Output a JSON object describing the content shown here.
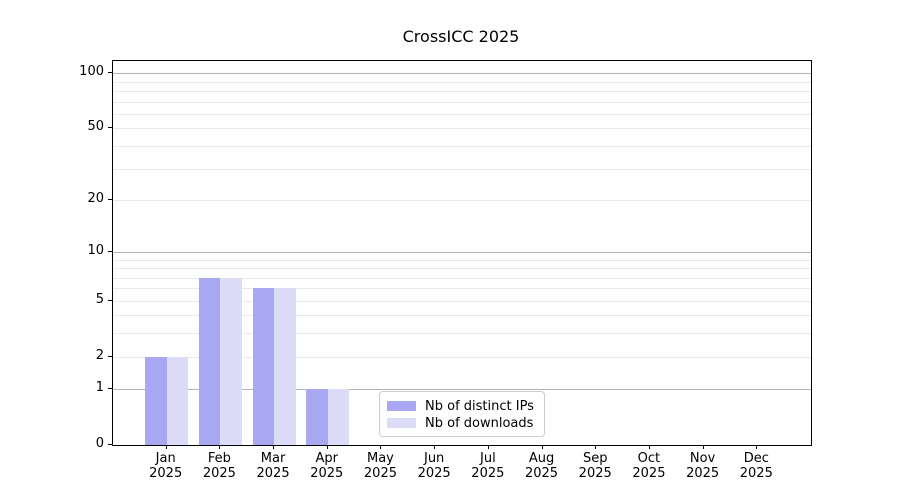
{
  "title": "CrossICC 2025",
  "chart_data": {
    "type": "bar",
    "title": "CrossICC 2025",
    "categories": [
      "Jan 2025",
      "Feb 2025",
      "Mar 2025",
      "Apr 2025",
      "May 2025",
      "Jun 2025",
      "Jul 2025",
      "Aug 2025",
      "Sep 2025",
      "Oct 2025",
      "Nov 2025",
      "Dec 2025"
    ],
    "series": [
      {
        "name": "Nb of distinct IPs",
        "color": "#a8a8f2",
        "values": [
          2,
          7,
          6,
          1,
          0,
          0,
          0,
          0,
          0,
          0,
          0,
          0
        ]
      },
      {
        "name": "Nb of downloads",
        "color": "#dcdcf8",
        "values": [
          2,
          7,
          6,
          1,
          0,
          0,
          0,
          0,
          0,
          0,
          0,
          0
        ]
      }
    ],
    "xlabel": "",
    "ylabel": "",
    "y_scale": "log1p",
    "y_ticks": [
      0,
      1,
      2,
      5,
      10,
      20,
      50,
      100
    ],
    "grid": true,
    "grid_major_values": [
      1,
      10,
      100
    ],
    "grid_minor_values": [
      2,
      3,
      4,
      5,
      6,
      7,
      8,
      9,
      20,
      30,
      40,
      50,
      60,
      70,
      80,
      90
    ],
    "legend_position": "lower center inside",
    "legend_labels": [
      "Nb of distinct IPs",
      "Nb of downloads"
    ]
  },
  "colors": {
    "distinct_ips": "#a8a8f2",
    "downloads": "#dcdcf8",
    "grid_major": "#b4b4b4",
    "grid_minor": "#e9e9e9",
    "spine": "#000000",
    "legend_border": "#cccccc",
    "background": "#ffffff"
  }
}
